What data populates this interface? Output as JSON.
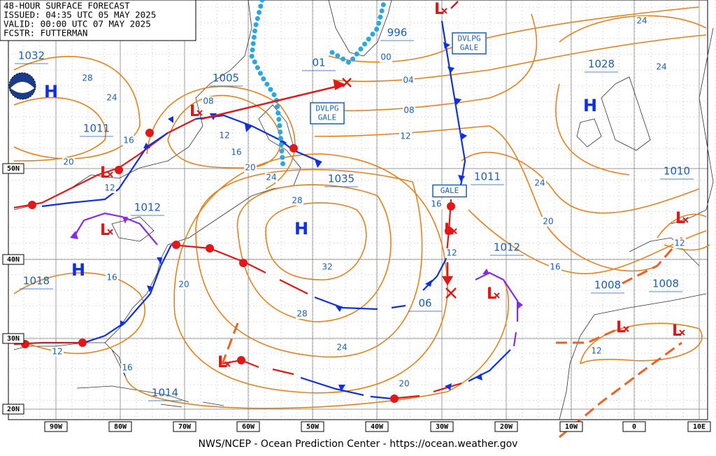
{
  "header": {
    "lines": [
      "48-HOUR SURFACE FORECAST",
      "ISSUED: 04:35 UTC 05 MAY 2025",
      "VALID: 00:00 UTC 07 MAY 2025",
      "FCSTR: FUTTERMAN"
    ]
  },
  "pressures": [
    "1032",
    "1005",
    "996",
    "01",
    "1011",
    "1012",
    "1018",
    "1035",
    "1028",
    "1011",
    "1012",
    "1010",
    "1008",
    "1008",
    "1014",
    "06"
  ],
  "high_symbol": "H",
  "low_symbol": "L",
  "isobar_labels": [
    "28",
    "24",
    "16",
    "20",
    "12",
    "08",
    "12",
    "16",
    "20",
    "24",
    "28",
    "32",
    "28",
    "24",
    "20",
    "16",
    "12",
    "16",
    "20",
    "16",
    "12",
    "00",
    "04",
    "08",
    "12",
    "24",
    "24",
    "24",
    "20",
    "16",
    "12",
    "12"
  ],
  "warnings": [
    {
      "lines": [
        "DVLPG",
        "GALE"
      ]
    },
    {
      "lines": [
        "DVLPG",
        "GALE"
      ]
    },
    {
      "lines": [
        "GALE"
      ]
    }
  ],
  "longitudes": [
    "90W",
    "80W",
    "70W",
    "60W",
    "50W",
    "40W",
    "30W",
    "20W",
    "10W",
    "0",
    "10E"
  ],
  "latitudes": [
    "50N",
    "40N",
    "30N",
    "20N"
  ],
  "footer": "NWS/NCEP - Ocean Prediction Center - https://ocean.weather.gov"
}
